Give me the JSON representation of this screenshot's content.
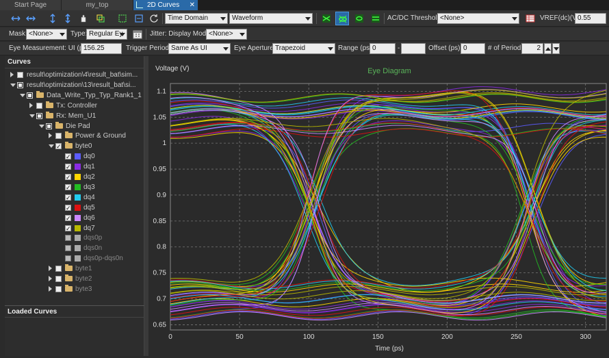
{
  "tabs": [
    {
      "label": "Start Page"
    },
    {
      "label": "my_top"
    },
    {
      "label": "2D Curves"
    }
  ],
  "toolbar1": {
    "domain_value": "Time Domain",
    "view_value": "Waveform",
    "acdc_label": "AC/DC Threshold:",
    "acdc_value": "<None>",
    "vref_label": "VREF(dc)(V):",
    "vref_value": "0.55",
    "icons": [
      "zoom-in-x-icon",
      "zoom-out-x-icon",
      "zoom-in-y-icon",
      "zoom-out-y-icon",
      "pan-icon",
      "copy-icon",
      "select-region-icon",
      "fit-icon",
      "refresh-icon",
      "eye-diagram-icon",
      "eye-mask-icon",
      "eye-measure-icon",
      "eye-settings-icon",
      "table-icon"
    ]
  },
  "toolbar2": {
    "mask_label": "Mask:",
    "mask_value": "<None>",
    "type_label": "Type:",
    "type_value": "Regular Ey",
    "jitter_label": "Jitter: Display Mode:",
    "jitter_value": "<None>"
  },
  "toolbar3": {
    "ui_label": "Eye Measurement: UI (ps):",
    "ui_value": "156.25",
    "trigger_label": "Trigger Period:",
    "trigger_value": "Same As UI",
    "aperture_label": "Eye Aperture:",
    "aperture_value": "Trapezoid",
    "range_label": "Range (ps):",
    "range_from": "0",
    "range_to": "",
    "offset_label": "Offset (ps):",
    "offset_value": "0",
    "periods_label": "# of Period:",
    "periods_value": "2"
  },
  "curves_panel": {
    "title": "Curves",
    "loaded_title": "Loaded Curves",
    "items": [
      {
        "label": "result\\optimization\\4\\result_bat\\sim...",
        "level": 0,
        "expander": "closed",
        "check": "unchecked",
        "icon": "none"
      },
      {
        "label": "result\\optimization\\13\\result_bat\\si...",
        "level": 0,
        "expander": "open",
        "check": "partial",
        "icon": "none"
      },
      {
        "label": "Data_Write_Typ_Typ_Rank1_1",
        "level": 1,
        "expander": "open",
        "check": "partial",
        "icon": "folder"
      },
      {
        "label": "Tx: Controller",
        "level": 2,
        "expander": "closed",
        "check": "unchecked",
        "icon": "folder"
      },
      {
        "label": "Rx: Mem_U1",
        "level": 2,
        "expander": "open",
        "check": "partial",
        "icon": "folder"
      },
      {
        "label": "Die Pad",
        "level": 3,
        "expander": "open",
        "check": "partial",
        "icon": "folder"
      },
      {
        "label": "Power & Ground",
        "level": 4,
        "expander": "closed",
        "check": "unchecked",
        "icon": "folder"
      },
      {
        "label": "byte0",
        "level": 4,
        "expander": "open",
        "check": "checked",
        "icon": "folder"
      },
      {
        "label": "dq0",
        "level": 5,
        "expander": "none",
        "check": "checked",
        "icon": "swatch",
        "color": "#5c5cff"
      },
      {
        "label": "dq1",
        "level": 5,
        "expander": "none",
        "check": "checked",
        "icon": "swatch",
        "color": "#8a2be2"
      },
      {
        "label": "dq2",
        "level": 5,
        "expander": "none",
        "check": "checked",
        "icon": "swatch",
        "color": "#ffd700"
      },
      {
        "label": "dq3",
        "level": 5,
        "expander": "none",
        "check": "checked",
        "icon": "swatch",
        "color": "#22bb22"
      },
      {
        "label": "dq4",
        "level": 5,
        "expander": "none",
        "check": "checked",
        "icon": "swatch",
        "color": "#22ccee"
      },
      {
        "label": "dq5",
        "level": 5,
        "expander": "none",
        "check": "checked",
        "icon": "swatch",
        "color": "#dd1111"
      },
      {
        "label": "dq6",
        "level": 5,
        "expander": "none",
        "check": "checked",
        "icon": "swatch",
        "color": "#cc88ff"
      },
      {
        "label": "dq7",
        "level": 5,
        "expander": "none",
        "check": "checked",
        "icon": "swatch",
        "color": "#b8b800"
      },
      {
        "label": "dqs0p",
        "level": 5,
        "expander": "none",
        "check": "disabled",
        "icon": "swatch",
        "color": "#aaaaaa",
        "dim": true
      },
      {
        "label": "dqs0n",
        "level": 5,
        "expander": "none",
        "check": "disabled",
        "icon": "swatch",
        "color": "#aaaaaa",
        "dim": true
      },
      {
        "label": "dqs0p-dqs0n",
        "level": 5,
        "expander": "none",
        "check": "disabled",
        "icon": "swatch",
        "color": "#aaaaaa",
        "dim": true
      },
      {
        "label": "byte1",
        "level": 4,
        "expander": "closed",
        "check": "unchecked",
        "icon": "folder",
        "dim": true
      },
      {
        "label": "byte2",
        "level": 4,
        "expander": "closed",
        "check": "unchecked",
        "icon": "folder",
        "dim": true
      },
      {
        "label": "byte3",
        "level": 4,
        "expander": "closed",
        "check": "unchecked",
        "icon": "folder",
        "dim": true
      }
    ]
  },
  "chart_data": {
    "type": "line",
    "title": "Eye Diagram",
    "xlabel": "Time (ps)",
    "ylabel": "Voltage (V)",
    "xlim": [
      0,
      315
    ],
    "ylim": [
      0.64,
      1.115
    ],
    "x_ticks": [
      0,
      50,
      100,
      150,
      200,
      250,
      300
    ],
    "y_ticks": [
      0.65,
      0.7,
      0.75,
      0.8,
      0.85,
      0.9,
      0.95,
      1,
      1.05,
      1.1
    ],
    "grid": true,
    "unit_interval_ps": 156.25,
    "crossings_ps": [
      104,
      260
    ],
    "high_level_v": 1.06,
    "low_level_v": 0.7,
    "series": [
      {
        "name": "dq0",
        "color": "#5c5cff"
      },
      {
        "name": "dq1",
        "color": "#8a2be2"
      },
      {
        "name": "dq2",
        "color": "#ffd700"
      },
      {
        "name": "dq3",
        "color": "#22bb22"
      },
      {
        "name": "dq4",
        "color": "#22ccee"
      },
      {
        "name": "dq5",
        "color": "#dd1111"
      },
      {
        "name": "dq6",
        "color": "#cc88ff"
      },
      {
        "name": "dq7",
        "color": "#b8b800"
      }
    ]
  }
}
